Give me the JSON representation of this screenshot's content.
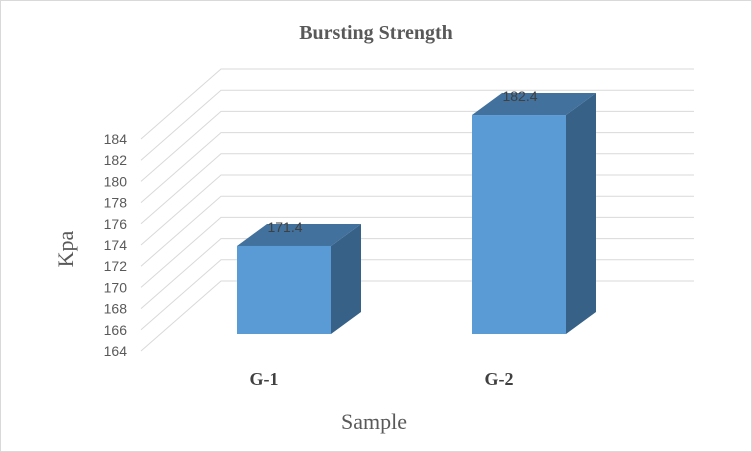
{
  "chart_data": {
    "type": "bar",
    "title": "Bursting Strength",
    "xlabel": "Sample",
    "ylabel": "Kpa",
    "categories": [
      "G-1",
      "G-2"
    ],
    "values": [
      171.4,
      182.4
    ],
    "data_labels": [
      "171.4",
      "182.4"
    ],
    "ylim": [
      164,
      184
    ],
    "y_ticks": [
      "164",
      "166",
      "168",
      "170",
      "172",
      "174",
      "176",
      "178",
      "180",
      "182",
      "184"
    ],
    "grid": true,
    "legend": "none",
    "style": "3d-clustered-column",
    "colors": {
      "bar_front": "#5b9bd5",
      "bar_top": "#41719c",
      "bar_side": "#376187",
      "grid": "#d9d9d9",
      "text": "#595959"
    }
  }
}
